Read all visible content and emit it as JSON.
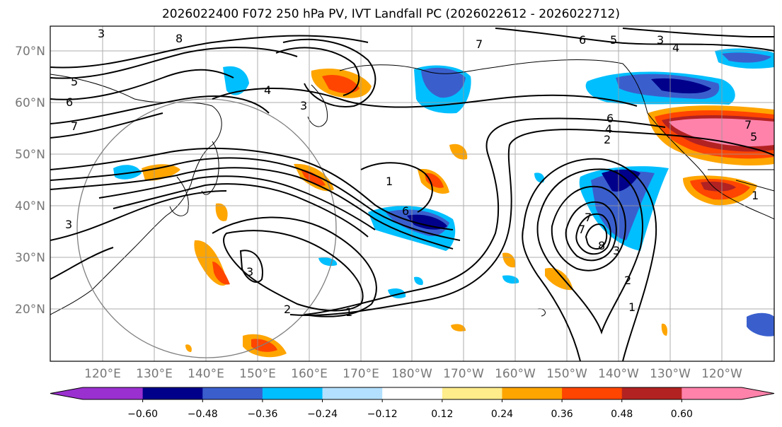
{
  "title": "2026022400 F072 250 hPa PV, IVT Landfall PC (2026022612 - 2026022712)",
  "map": {
    "lat_labels": [
      "70°N",
      "60°N",
      "50°N",
      "40°N",
      "30°N",
      "20°N"
    ],
    "lon_labels": [
      "120°E",
      "130°E",
      "140°E",
      "150°E",
      "160°E",
      "170°E",
      "180°W",
      "170°W",
      "160°W",
      "150°W",
      "140°W",
      "130°W",
      "120°W"
    ],
    "contour_labels": [
      "3",
      "8",
      "5",
      "6",
      "7",
      "4",
      "3",
      "6",
      "5",
      "3",
      "4",
      "7",
      "6",
      "4",
      "2",
      "7",
      "5",
      "1",
      "6",
      "7",
      "3",
      "1",
      "2",
      "3",
      "8",
      "2",
      "1",
      "3",
      "7",
      "1"
    ]
  },
  "colorbar": {
    "colors": [
      "#9b30d0",
      "#00008b",
      "#3a5fcd",
      "#00bfff",
      "#b3e0ff",
      "#ffffff",
      "#ffec8b",
      "#ffa500",
      "#ff4500",
      "#b22222",
      "#ff82ab"
    ],
    "extend_low_color": "#9b30d0",
    "extend_high_color": "#ff82ab",
    "tick_labels": [
      "−0.60",
      "−0.48",
      "−0.36",
      "−0.24",
      "−0.12",
      "0.12",
      "0.24",
      "0.36",
      "0.48",
      "0.60"
    ]
  }
}
